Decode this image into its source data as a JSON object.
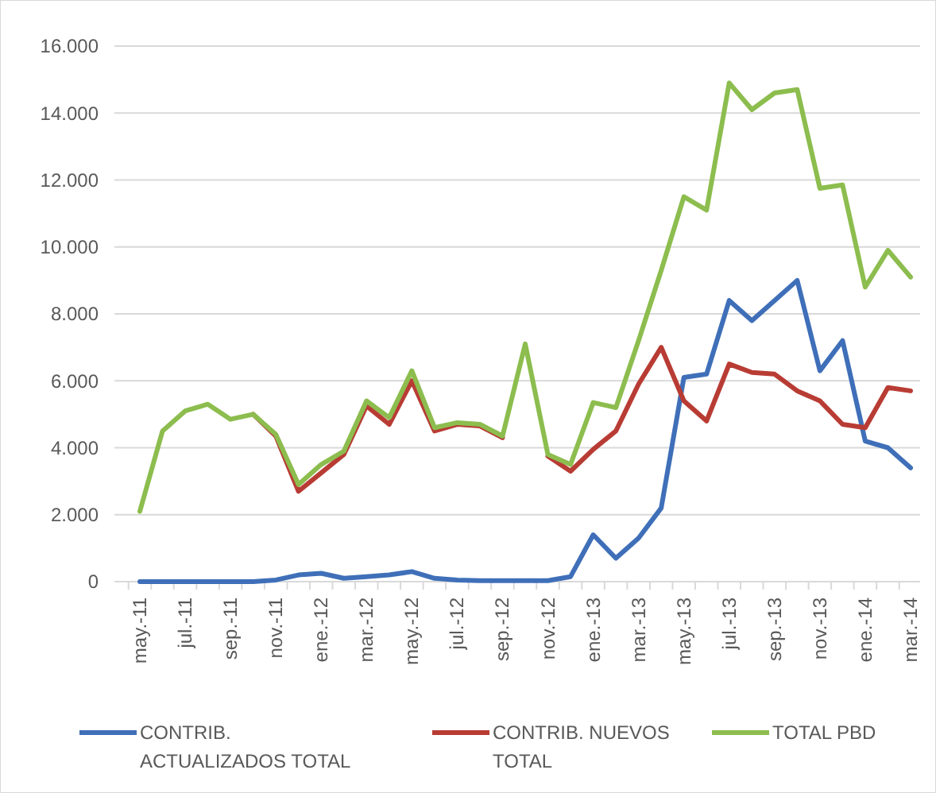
{
  "chart_data": {
    "type": "line",
    "categories": [
      "may.-11",
      null,
      "jul.-11",
      null,
      "sep.-11",
      null,
      "nov.-11",
      null,
      "ene.-12",
      null,
      "mar.-12",
      null,
      "may.-12",
      null,
      "jul.-12",
      null,
      "sep.-12",
      null,
      "nov.-12",
      null,
      "ene.-13",
      null,
      "mar.-13",
      null,
      "may.-13",
      null,
      "jul.-13",
      null,
      "sep.-13",
      null,
      "nov.-13",
      null,
      "ene.-14",
      null,
      "mar.-14"
    ],
    "series": [
      {
        "name": "CONTRIB. ACTUALIZADOS TOTAL",
        "color": "#3f6fb8",
        "values": [
          0,
          0,
          0,
          0,
          0,
          0,
          50,
          200,
          250,
          100,
          150,
          200,
          300,
          100,
          50,
          30,
          30,
          30,
          30,
          150,
          1400,
          700,
          1300,
          2200,
          6100,
          6200,
          8400,
          7800,
          8400,
          9000,
          6300,
          7200,
          4200,
          4000,
          3400
        ]
      },
      {
        "name": "CONTRIB. NUEVOS TOTAL",
        "color": "#b83c34",
        "values": [
          null,
          null,
          null,
          null,
          null,
          5000,
          4350,
          2700,
          3250,
          3800,
          5250,
          4700,
          6000,
          4500,
          4700,
          4650,
          4300,
          null,
          3750,
          3300,
          3950,
          4500,
          5900,
          7000,
          5400,
          4800,
          6500,
          6250,
          6200,
          5700,
          5400,
          4700,
          4600,
          5800,
          5700
        ]
      },
      {
        "name": "TOTAL PBD",
        "color": "#8cbd4e",
        "values": [
          2100,
          4500,
          5100,
          5300,
          4850,
          5000,
          4400,
          2900,
          3500,
          3900,
          5400,
          4900,
          6300,
          4600,
          4750,
          4700,
          4350,
          7100,
          3800,
          3500,
          5350,
          5200,
          7200,
          9300,
          11500,
          11100,
          14900,
          14100,
          14600,
          14700,
          11750,
          11850,
          8800,
          9900,
          9100
        ]
      }
    ],
    "ylim": [
      0,
      16000
    ],
    "yticks": [
      0,
      {
        "value": 2000,
        "label": "2.000"
      },
      {
        "value": 4000,
        "label": "4.000"
      },
      {
        "value": 6000,
        "label": "6.000"
      },
      {
        "value": 8000,
        "label": "8.000"
      },
      {
        "value": 10000,
        "label": "10.000"
      },
      {
        "value": 12000,
        "label": "12.000"
      },
      {
        "value": 14000,
        "label": "14.000"
      },
      {
        "value": 16000,
        "label": "16.000"
      }
    ],
    "grid": "y",
    "legend": "bottom",
    "marker": "none",
    "line_style": "solid"
  }
}
